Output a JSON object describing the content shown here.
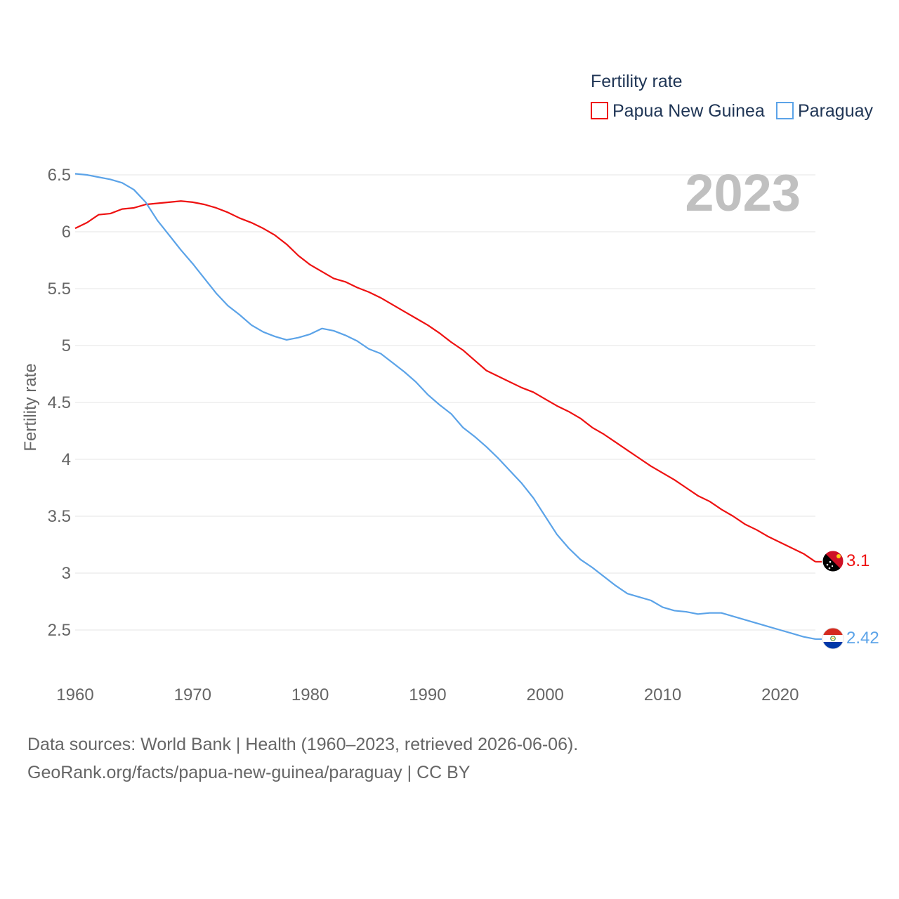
{
  "chart_data": {
    "type": "line",
    "legend_title": "Fertility rate",
    "ylabel": "Fertility rate",
    "xlabel": "",
    "year_label": "2023",
    "xlim": [
      1960,
      2023
    ],
    "ylim": [
      2.25,
      6.5
    ],
    "x_ticks": [
      1960,
      1970,
      1980,
      1990,
      2000,
      2010,
      2020
    ],
    "y_ticks": [
      2.5,
      3,
      3.5,
      4,
      4.5,
      5,
      5.5,
      6,
      6.5
    ],
    "x_tick_labels": [
      "1960",
      "1970",
      "1980",
      "1990",
      "2000",
      "2010",
      "2020"
    ],
    "y_tick_labels": [
      "2.5",
      "3",
      "3.5",
      "4",
      "4.5",
      "5",
      "5.5",
      "6",
      "6.5"
    ],
    "legend_placement": "top-right",
    "x": [
      1960,
      1961,
      1962,
      1963,
      1964,
      1965,
      1966,
      1967,
      1968,
      1969,
      1970,
      1971,
      1972,
      1973,
      1974,
      1975,
      1976,
      1977,
      1978,
      1979,
      1980,
      1981,
      1982,
      1983,
      1984,
      1985,
      1986,
      1987,
      1988,
      1989,
      1990,
      1991,
      1992,
      1993,
      1994,
      1995,
      1996,
      1997,
      1998,
      1999,
      2000,
      2001,
      2002,
      2003,
      2004,
      2005,
      2006,
      2007,
      2008,
      2009,
      2010,
      2011,
      2012,
      2013,
      2014,
      2015,
      2016,
      2017,
      2018,
      2019,
      2020,
      2021,
      2022,
      2023
    ],
    "series": [
      {
        "name": "Papua New Guinea",
        "color": "#ee1111",
        "end_label": "3.1",
        "flag": "papua-new-guinea-flag-icon",
        "values": [
          6.03,
          6.08,
          6.15,
          6.16,
          6.2,
          6.21,
          6.24,
          6.25,
          6.26,
          6.27,
          6.26,
          6.24,
          6.21,
          6.17,
          6.12,
          6.08,
          6.03,
          5.97,
          5.89,
          5.79,
          5.71,
          5.65,
          5.59,
          5.56,
          5.51,
          5.47,
          5.42,
          5.36,
          5.3,
          5.24,
          5.18,
          5.11,
          5.03,
          4.96,
          4.87,
          4.78,
          4.73,
          4.68,
          4.63,
          4.59,
          4.53,
          4.47,
          4.42,
          4.36,
          4.28,
          4.22,
          4.15,
          4.08,
          4.01,
          3.94,
          3.88,
          3.82,
          3.75,
          3.68,
          3.63,
          3.56,
          3.5,
          3.43,
          3.38,
          3.32,
          3.27,
          3.22,
          3.17,
          3.1
        ]
      },
      {
        "name": "Paraguay",
        "color": "#5ba3e8",
        "end_label": "2.42",
        "flag": "paraguay-flag-icon",
        "values": [
          6.51,
          6.5,
          6.48,
          6.46,
          6.43,
          6.37,
          6.26,
          6.1,
          5.97,
          5.84,
          5.72,
          5.59,
          5.46,
          5.35,
          5.27,
          5.18,
          5.12,
          5.08,
          5.05,
          5.07,
          5.1,
          5.15,
          5.13,
          5.09,
          5.04,
          4.97,
          4.93,
          4.85,
          4.77,
          4.68,
          4.57,
          4.48,
          4.4,
          4.28,
          4.2,
          4.11,
          4.01,
          3.9,
          3.79,
          3.66,
          3.5,
          3.34,
          3.22,
          3.12,
          3.05,
          2.97,
          2.89,
          2.82,
          2.79,
          2.76,
          2.7,
          2.67,
          2.66,
          2.64,
          2.65,
          2.65,
          2.62,
          2.59,
          2.56,
          2.53,
          2.5,
          2.47,
          2.44,
          2.42
        ]
      }
    ]
  },
  "footer": {
    "line1": "Data sources: World Bank | Health (1960–2023, retrieved 2026-06-06).",
    "line2": "GeoRank.org/facts/papua-new-guinea/paraguay | CC BY"
  }
}
